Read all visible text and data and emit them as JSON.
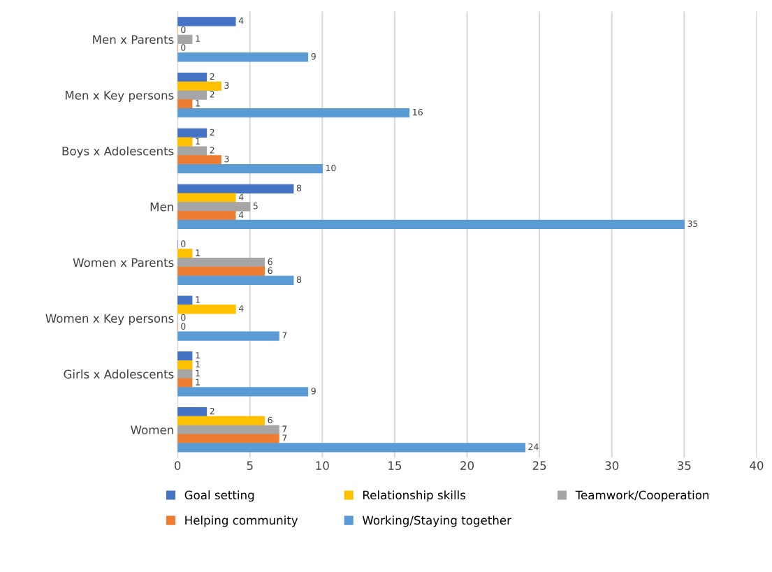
{
  "chart_data": {
    "type": "bar",
    "orientation": "horizontal",
    "categories": [
      "Men x Parents",
      "Men x Key persons",
      "Boys x Adolescents",
      "Men",
      "Women x Parents",
      "Women x Key persons",
      "Girls x Adolescents",
      "Women"
    ],
    "series": [
      {
        "name": "Goal setting",
        "color": "#4472c4",
        "values": [
          4,
          2,
          2,
          8,
          0,
          1,
          1,
          2
        ]
      },
      {
        "name": "Relationship skills",
        "color": "#ffc000",
        "values": [
          0,
          3,
          1,
          4,
          1,
          4,
          1,
          6
        ]
      },
      {
        "name": "Teamwork/Cooperation",
        "color": "#a5a5a5",
        "values": [
          1,
          2,
          2,
          5,
          6,
          0,
          1,
          7
        ]
      },
      {
        "name": "Helping community",
        "color": "#ed7d31",
        "values": [
          0,
          1,
          3,
          4,
          6,
          0,
          1,
          7
        ]
      },
      {
        "name": "Working/Staying together",
        "color": "#5b9bd5",
        "values": [
          9,
          16,
          10,
          35,
          8,
          7,
          9,
          24
        ]
      }
    ],
    "xlim": [
      0,
      40
    ],
    "xticks": [
      0,
      5,
      10,
      15,
      20,
      25,
      30,
      35,
      40
    ],
    "grid": "x",
    "legend": "bottom",
    "data_labels": true
  }
}
